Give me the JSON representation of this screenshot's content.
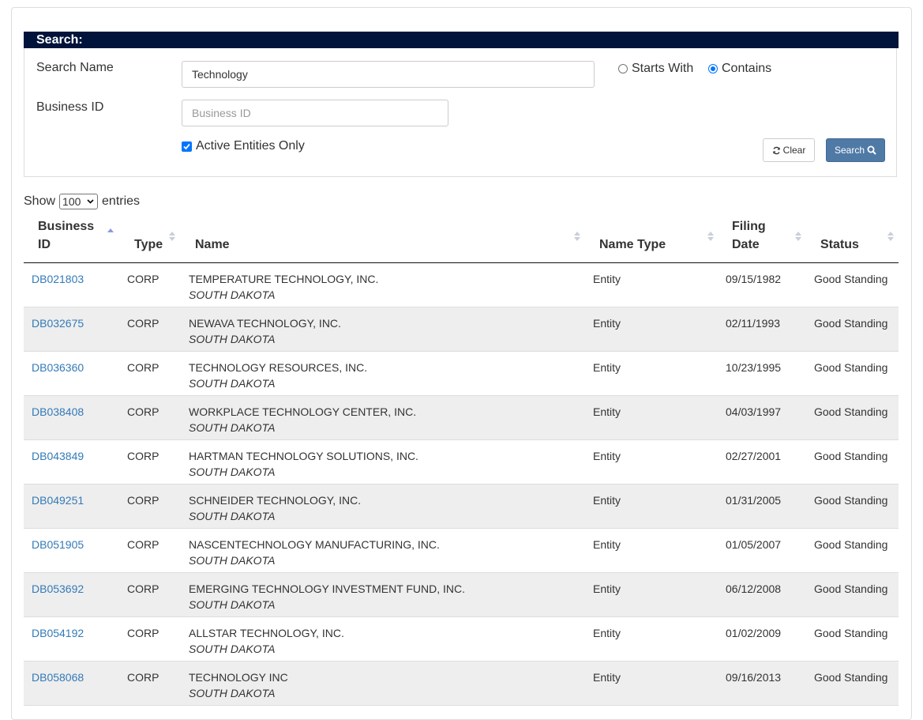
{
  "search": {
    "header": "Search:",
    "name_label": "Search Name",
    "name_value": "Technology",
    "id_label": "Business ID",
    "id_placeholder": "Business ID",
    "radio_starts": "Starts With",
    "radio_contains": "Contains",
    "radio_selected": "Contains",
    "active_label": "Active Entities Only",
    "active_checked": true,
    "clear_label": "Clear",
    "search_label": "Search"
  },
  "entries": {
    "show_label": "Show",
    "selected": "100",
    "entries_label": "entries"
  },
  "table": {
    "headers": {
      "business_id_1": "Business",
      "business_id_2": "ID",
      "type": "Type",
      "name": "Name",
      "name_type": "Name Type",
      "filing_date_1": "Filing",
      "filing_date_2": "Date",
      "status": "Status"
    },
    "sort_column": "Business ID",
    "sort_direction": "ascending",
    "rows": [
      {
        "id": "DB021803",
        "type": "CORP",
        "name": "TEMPERATURE TECHNOLOGY, INC.",
        "state": "SOUTH DAKOTA",
        "name_type": "Entity",
        "date": "09/15/1982",
        "status": "Good Standing"
      },
      {
        "id": "DB032675",
        "type": "CORP",
        "name": "NEWAVA TECHNOLOGY, INC.",
        "state": "SOUTH DAKOTA",
        "name_type": "Entity",
        "date": "02/11/1993",
        "status": "Good Standing"
      },
      {
        "id": "DB036360",
        "type": "CORP",
        "name": "TECHNOLOGY RESOURCES, INC.",
        "state": "SOUTH DAKOTA",
        "name_type": "Entity",
        "date": "10/23/1995",
        "status": "Good Standing"
      },
      {
        "id": "DB038408",
        "type": "CORP",
        "name": "WORKPLACE TECHNOLOGY CENTER, INC.",
        "state": "SOUTH DAKOTA",
        "name_type": "Entity",
        "date": "04/03/1997",
        "status": "Good Standing"
      },
      {
        "id": "DB043849",
        "type": "CORP",
        "name": "HARTMAN TECHNOLOGY SOLUTIONS, INC.",
        "state": "SOUTH DAKOTA",
        "name_type": "Entity",
        "date": "02/27/2001",
        "status": "Good Standing"
      },
      {
        "id": "DB049251",
        "type": "CORP",
        "name": "SCHNEIDER TECHNOLOGY, INC.",
        "state": "SOUTH DAKOTA",
        "name_type": "Entity",
        "date": "01/31/2005",
        "status": "Good Standing"
      },
      {
        "id": "DB051905",
        "type": "CORP",
        "name": "NASCENTECHNOLOGY MANUFACTURING, INC.",
        "state": "SOUTH DAKOTA",
        "name_type": "Entity",
        "date": "01/05/2007",
        "status": "Good Standing"
      },
      {
        "id": "DB053692",
        "type": "CORP",
        "name": "EMERGING TECHNOLOGY INVESTMENT FUND, INC.",
        "state": "SOUTH DAKOTA",
        "name_type": "Entity",
        "date": "06/12/2008",
        "status": "Good Standing"
      },
      {
        "id": "DB054192",
        "type": "CORP",
        "name": "ALLSTAR TECHNOLOGY, INC.",
        "state": "SOUTH DAKOTA",
        "name_type": "Entity",
        "date": "01/02/2009",
        "status": "Good Standing"
      },
      {
        "id": "DB058068",
        "type": "CORP",
        "name": "TECHNOLOGY INC",
        "state": "SOUTH DAKOTA",
        "name_type": "Entity",
        "date": "09/16/2013",
        "status": "Good Standing"
      }
    ]
  },
  "colors": {
    "header_bar": "#00133a",
    "link": "#337ab7",
    "search_button": "#4f7aa6",
    "row_stripe": "#eeeeee"
  }
}
